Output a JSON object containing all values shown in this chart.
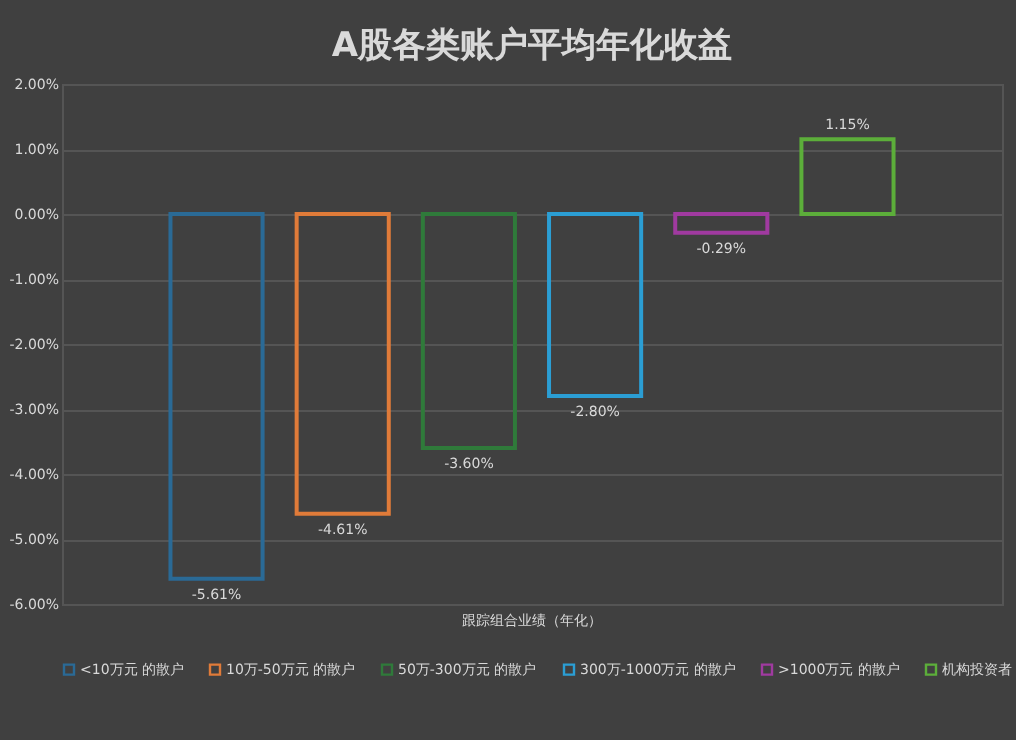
{
  "chart_data": {
    "type": "bar",
    "title": "A股各类账户平均年化收益",
    "categories": [
      "跟踪组合业绩（年化）"
    ],
    "series": [
      {
        "name": "<10万元 的散户",
        "color": "#2a6a96",
        "values": [
          -5.61
        ],
        "value_labels": [
          "-5.61%"
        ]
      },
      {
        "name": "10万-50万元 的散户",
        "color": "#e07b39",
        "values": [
          -4.61
        ],
        "value_labels": [
          "-4.61%"
        ]
      },
      {
        "name": "50万-300万元 的散户",
        "color": "#2f7a3a",
        "values": [
          -3.6
        ],
        "value_labels": [
          "-3.60%"
        ]
      },
      {
        "name": "300万-1000万元 的散户",
        "color": "#2b9ed4",
        "values": [
          -2.8
        ],
        "value_labels": [
          "-2.80%"
        ]
      },
      {
        "name": ">1000万元 的散户",
        "color": "#a03aa0",
        "values": [
          -0.29
        ],
        "value_labels": [
          "-0.29%"
        ]
      },
      {
        "name": "机构投资者",
        "color": "#5cae3a",
        "values": [
          1.15
        ],
        "value_labels": [
          "1.15%"
        ]
      }
    ],
    "ylim": [
      -6,
      2
    ],
    "yticks": [
      {
        "value": -6,
        "label": "-6.00%"
      },
      {
        "value": -5,
        "label": "-5.00%"
      },
      {
        "value": -4,
        "label": "-4.00%"
      },
      {
        "value": -3,
        "label": "-3.00%"
      },
      {
        "value": -2,
        "label": "-2.00%"
      },
      {
        "value": -1,
        "label": "-1.00%"
      },
      {
        "value": 0,
        "label": "0.00%"
      },
      {
        "value": 1,
        "label": "1.00%"
      },
      {
        "value": 2,
        "label": "2.00%"
      }
    ],
    "grid": "y",
    "legend": "bottom"
  }
}
